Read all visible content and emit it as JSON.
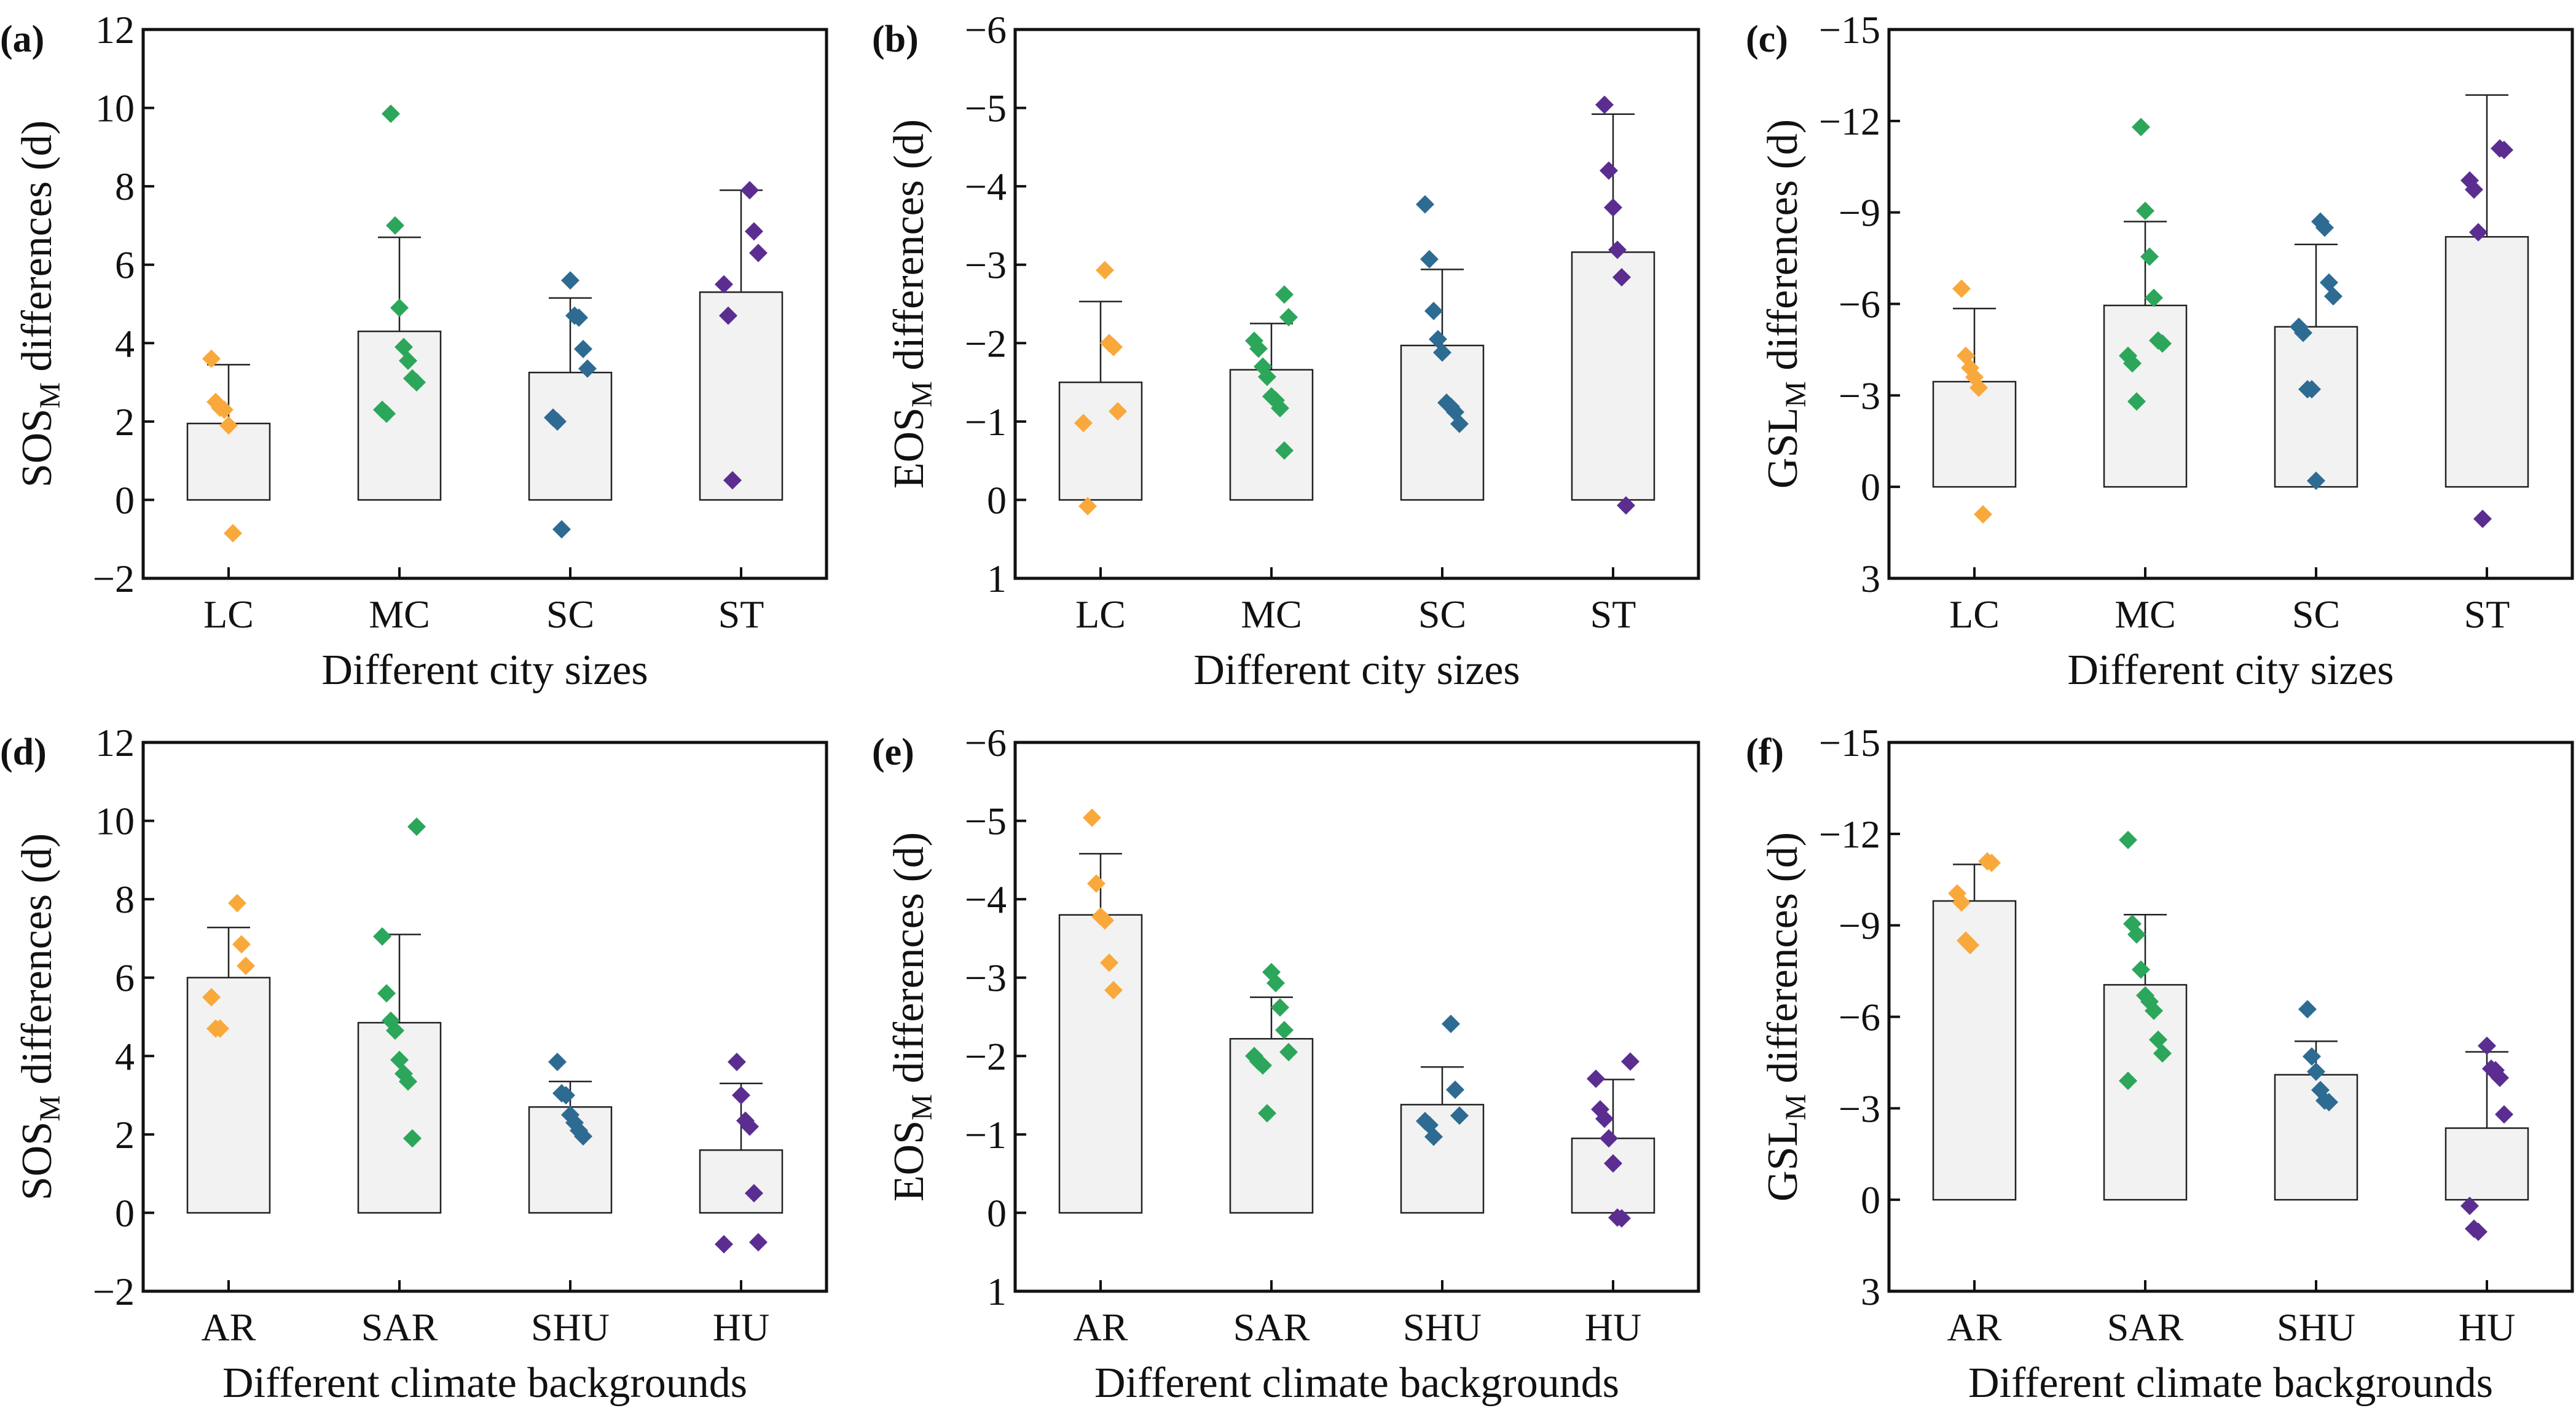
{
  "colors": {
    "bar_fill": "#f2f2f2",
    "bar_stroke": "#222222",
    "series": [
      "#f9a93b",
      "#2ca65a",
      "#2e6b92",
      "#5b2d91"
    ]
  },
  "chart_data": [
    {
      "type": "bar",
      "panel_label": "(a)",
      "ylabel": {
        "main": "SOS",
        "sub": "M",
        "rest": " differences (d)"
      },
      "xlabel": "Different city sizes",
      "ylim": [
        -2,
        12
      ],
      "inverted": false,
      "yticks": [
        -2,
        0,
        2,
        4,
        6,
        8,
        10,
        12
      ],
      "categories": [
        "LC",
        "MC",
        "SC",
        "ST"
      ],
      "values": [
        1.95,
        4.3,
        3.25,
        5.3
      ],
      "error_upper": [
        3.45,
        6.7,
        5.15,
        7.9
      ],
      "points": [
        [
          3.6,
          2.5,
          2.35,
          2.3,
          1.9,
          -0.85
        ],
        [
          9.85,
          7.0,
          4.9,
          3.9,
          3.55,
          3.1,
          3.0,
          2.3,
          2.2
        ],
        [
          5.6,
          4.7,
          4.65,
          3.85,
          3.35,
          2.1,
          2.0,
          -0.75
        ],
        [
          7.9,
          6.85,
          6.3,
          5.5,
          4.7,
          0.5
        ]
      ]
    },
    {
      "type": "bar",
      "panel_label": "(b)",
      "ylabel": {
        "main": "EOS",
        "sub": "M",
        "rest": " differences (d)"
      },
      "xlabel": "Different city sizes",
      "ylim": [
        1,
        -6
      ],
      "inverted": true,
      "yticks": [
        1,
        0,
        -1,
        -2,
        -3,
        -4,
        -5,
        -6
      ],
      "categories": [
        "LC",
        "MC",
        "SC",
        "ST"
      ],
      "values": [
        -1.5,
        -1.66,
        -1.97,
        -3.16
      ],
      "error_upper": [
        -2.53,
        -2.25,
        -2.94,
        -4.92
      ],
      "points": [
        [
          -2.93,
          -2.0,
          -1.95,
          -1.13,
          -0.98,
          0.08
        ],
        [
          -2.62,
          -2.33,
          -2.03,
          -1.93,
          -1.7,
          -1.57,
          -1.32,
          -1.27,
          -1.17,
          -0.63
        ],
        [
          -3.77,
          -3.07,
          -2.41,
          -2.05,
          -1.88,
          -1.24,
          -1.19,
          -1.12,
          -0.97
        ],
        [
          -5.04,
          -4.2,
          -3.73,
          -3.19,
          -2.84,
          0.07
        ]
      ]
    },
    {
      "type": "bar",
      "panel_label": "(c)",
      "ylabel": {
        "main": "GSL",
        "sub": "M",
        "rest": " differences (d)"
      },
      "xlabel": "Different city sizes",
      "ylim": [
        3,
        -15
      ],
      "inverted": true,
      "yticks": [
        3,
        0,
        -3,
        -6,
        -9,
        -12,
        -15
      ],
      "categories": [
        "LC",
        "MC",
        "SC",
        "ST"
      ],
      "values": [
        -3.45,
        -5.95,
        -5.25,
        -8.2
      ],
      "error_upper": [
        -5.85,
        -8.7,
        -7.95,
        -12.85
      ],
      "points": [
        [
          -6.5,
          -4.3,
          -3.9,
          -3.6,
          -3.25,
          0.9
        ],
        [
          -11.8,
          -9.05,
          -7.55,
          -6.2,
          -4.8,
          -4.7,
          -4.3,
          -4.05,
          -2.8
        ],
        [
          -8.7,
          -8.5,
          -6.7,
          -6.25,
          -5.25,
          -5.05,
          -3.2,
          -3.2,
          -0.2
        ],
        [
          -11.1,
          -11.05,
          -10.05,
          -9.75,
          -8.35,
          1.05
        ]
      ]
    },
    {
      "type": "bar",
      "panel_label": "(d)",
      "ylabel": {
        "main": "SOS",
        "sub": "M",
        "rest": " differences (d)"
      },
      "xlabel": "Different climate backgrounds",
      "ylim": [
        -2,
        12
      ],
      "inverted": false,
      "yticks": [
        -2,
        0,
        2,
        4,
        6,
        8,
        10,
        12
      ],
      "categories": [
        "AR",
        "SAR",
        "SHU",
        "HU"
      ],
      "values": [
        6.0,
        4.85,
        2.7,
        1.6
      ],
      "error_upper": [
        7.28,
        7.1,
        3.35,
        3.3
      ],
      "points": [
        [
          7.9,
          6.85,
          6.3,
          5.5,
          4.7,
          4.7
        ],
        [
          9.85,
          7.05,
          5.6,
          4.9,
          4.65,
          3.9,
          3.55,
          3.35,
          1.9
        ],
        [
          3.85,
          3.05,
          3.0,
          2.5,
          2.3,
          2.1,
          1.95
        ],
        [
          3.85,
          3.0,
          2.35,
          2.2,
          0.5,
          -0.75,
          -0.8
        ]
      ]
    },
    {
      "type": "bar",
      "panel_label": "(e)",
      "ylabel": {
        "main": "EOS",
        "sub": "M",
        "rest": " differences (d)"
      },
      "xlabel": "Different climate backgrounds",
      "ylim": [
        1,
        -6
      ],
      "inverted": true,
      "yticks": [
        1,
        0,
        -1,
        -2,
        -3,
        -4,
        -5,
        -6
      ],
      "categories": [
        "AR",
        "SAR",
        "SHU",
        "HU"
      ],
      "values": [
        -3.8,
        -2.22,
        -1.38,
        -0.95
      ],
      "error_upper": [
        -4.58,
        -2.75,
        -1.86,
        -1.7
      ],
      "points": [
        [
          -5.04,
          -4.2,
          -3.78,
          -3.73,
          -3.19,
          -2.84
        ],
        [
          -3.07,
          -2.93,
          -2.62,
          -2.33,
          -2.05,
          -2.0,
          -1.93,
          -1.88,
          -1.27
        ],
        [
          -2.41,
          -1.57,
          -1.24,
          -1.17,
          -1.12,
          -0.97
        ],
        [
          -1.93,
          -1.71,
          -1.32,
          -1.2,
          -0.95,
          -0.63,
          0.06,
          0.07
        ]
      ]
    },
    {
      "type": "bar",
      "panel_label": "(f)",
      "ylabel": {
        "main": "GSL",
        "sub": "M",
        "rest": " differences (d)"
      },
      "xlabel": "Different climate backgrounds",
      "ylim": [
        3,
        -15
      ],
      "inverted": true,
      "yticks": [
        3,
        0,
        -3,
        -6,
        -9,
        -12,
        -15
      ],
      "categories": [
        "AR",
        "SAR",
        "SHU",
        "HU"
      ],
      "values": [
        -9.8,
        -7.05,
        -4.1,
        -2.35
      ],
      "error_upper": [
        -11.0,
        -9.35,
        -5.2,
        -4.85
      ],
      "points": [
        [
          -11.1,
          -11.05,
          -10.05,
          -9.75,
          -8.5,
          -8.35
        ],
        [
          -11.8,
          -9.05,
          -8.7,
          -7.55,
          -6.7,
          -6.5,
          -6.2,
          -5.25,
          -4.8,
          -3.9
        ],
        [
          -6.25,
          -4.7,
          -4.2,
          -3.6,
          -3.25,
          -3.2
        ],
        [
          -5.05,
          -4.3,
          -4.25,
          -4.0,
          -2.8,
          0.2,
          0.95,
          1.05
        ]
      ]
    }
  ]
}
